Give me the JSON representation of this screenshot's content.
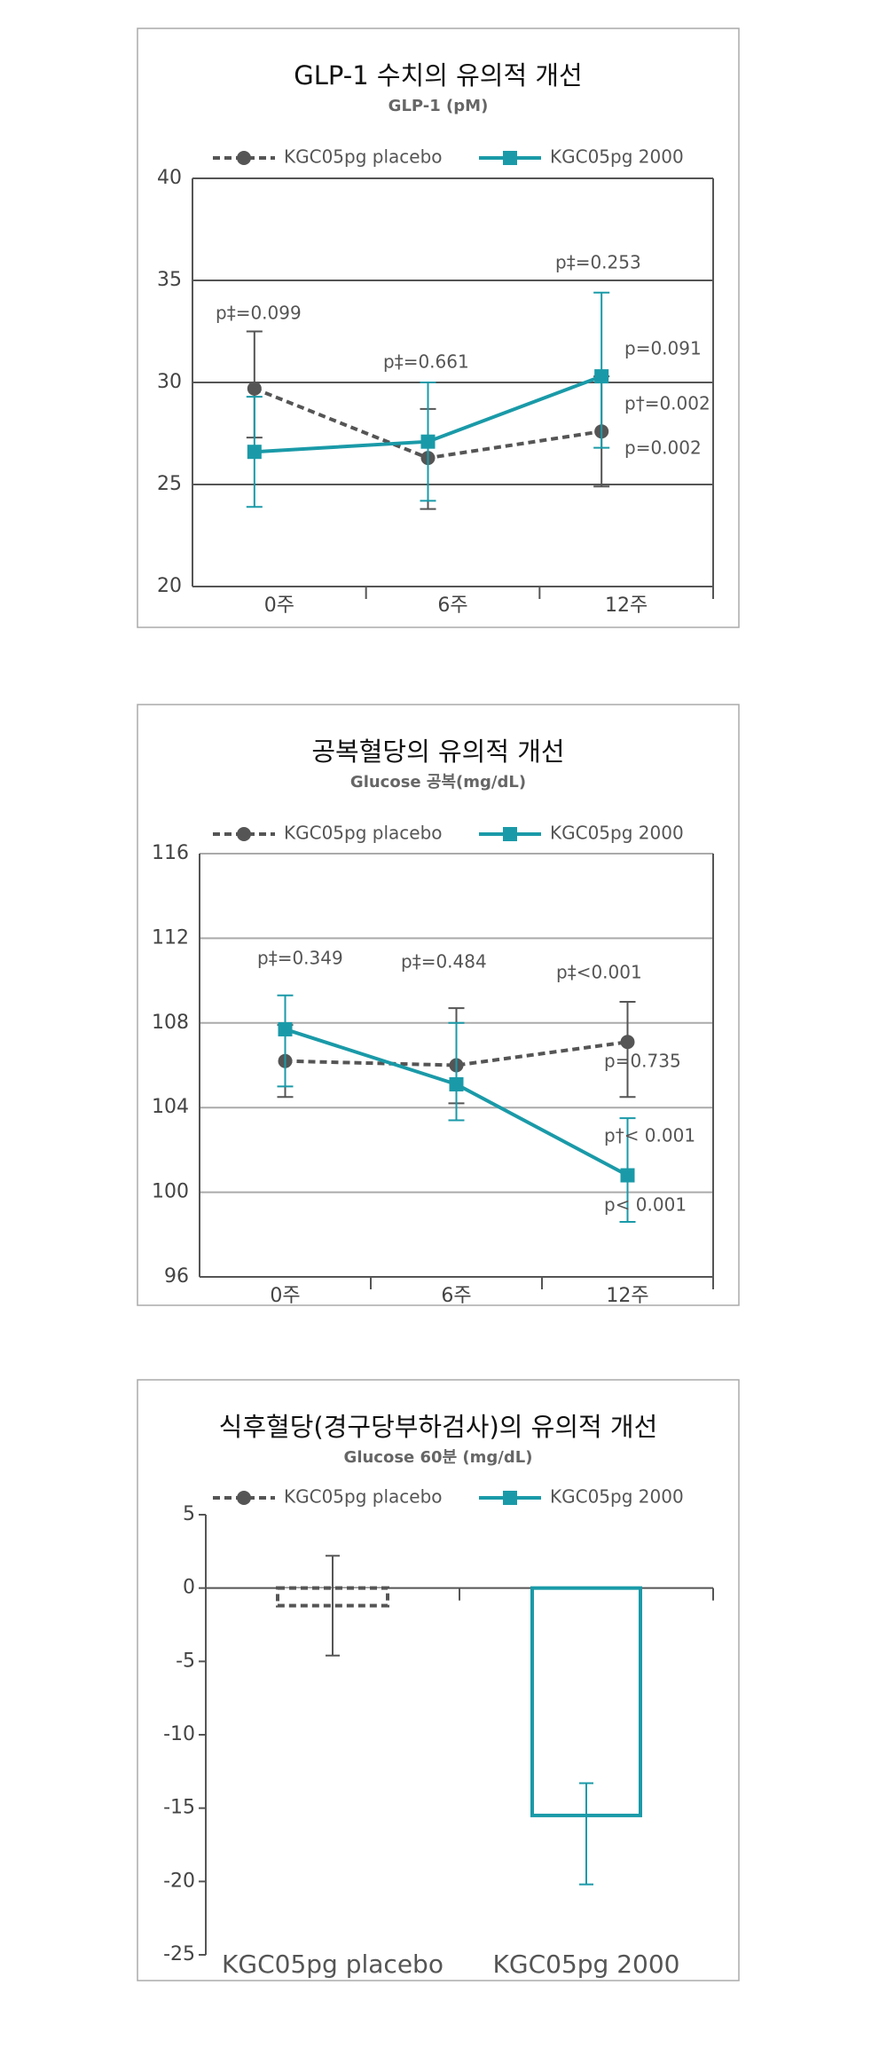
{
  "chart_data": [
    {
      "type": "line",
      "title": "GLP-1 수치의 유의적 개선",
      "subtitle": "GLP-1 (pM)",
      "categories": [
        "0주",
        "6주",
        "12주"
      ],
      "ylim": [
        20,
        40
      ],
      "yticks": [
        20,
        25,
        30,
        35,
        40
      ],
      "grid": true,
      "series": [
        {
          "name": "KGC05pg placebo",
          "color": "#555555",
          "dash": true,
          "marker": "circle",
          "values": [
            29.7,
            26.3,
            27.6
          ],
          "err_minus": [
            2.4,
            2.5,
            2.7
          ],
          "err_plus": [
            2.8,
            2.4,
            2.7
          ]
        },
        {
          "name": "KGC05pg 2000",
          "color": "#1a9aa8",
          "dash": false,
          "marker": "square",
          "values": [
            26.6,
            27.1,
            30.3
          ],
          "err_minus": [
            2.7,
            2.9,
            3.5
          ],
          "err_plus": [
            2.7,
            2.9,
            4.1
          ]
        }
      ],
      "annotations": [
        "p‡=0.099",
        "p‡=0.661",
        "p‡=0.253",
        "p=0.091",
        "p†=0.002",
        "p=0.002"
      ]
    },
    {
      "type": "line",
      "title": "공복혈당의 유의적 개선",
      "subtitle": "Glucose 공복(mg/dL)",
      "categories": [
        "0주",
        "6주",
        "12주"
      ],
      "ylim": [
        96,
        116
      ],
      "yticks": [
        96,
        100,
        104,
        108,
        112,
        116
      ],
      "grid": true,
      "series": [
        {
          "name": "KGC05pg placebo",
          "color": "#555555",
          "dash": true,
          "marker": "circle",
          "values": [
            106.2,
            106.0,
            107.1
          ],
          "err_minus": [
            1.7,
            1.8,
            2.6
          ],
          "err_plus": [
            1.7,
            2.7,
            1.9
          ]
        },
        {
          "name": "KGC05pg 2000",
          "color": "#1a9aa8",
          "dash": false,
          "marker": "square",
          "values": [
            107.7,
            105.1,
            100.8
          ],
          "err_minus": [
            2.7,
            1.7,
            2.2
          ],
          "err_plus": [
            1.6,
            2.9,
            2.7
          ]
        }
      ],
      "annotations": [
        "p‡=0.349",
        "p‡=0.484",
        "p‡<0.001",
        "p=0.735",
        "p†< 0.001",
        "p< 0.001"
      ]
    },
    {
      "type": "bar",
      "title": "식후혈당(경구당부하검사)의 유의적 개선",
      "subtitle": "Glucose  60분 (mg/dL)",
      "categories": [
        "KGC05pg placebo",
        "KGC05pg 2000"
      ],
      "ylim": [
        -25,
        5
      ],
      "yticks": [
        -25,
        -20,
        -15,
        -10,
        -5,
        0,
        5
      ],
      "grid": false,
      "series": [
        {
          "name": "KGC05pg placebo",
          "color": "#555555",
          "dash": true,
          "marker": "circle",
          "values": [
            -1.2,
            null
          ],
          "err_minus": [
            3.4,
            null
          ],
          "err_plus": [
            3.4,
            null
          ]
        },
        {
          "name": "KGC05pg 2000",
          "color": "#1a9aa8",
          "dash": false,
          "marker": "square",
          "values": [
            null,
            -15.5
          ],
          "err_minus": [
            null,
            4.7
          ],
          "err_plus": [
            null,
            2.2
          ]
        }
      ]
    }
  ]
}
